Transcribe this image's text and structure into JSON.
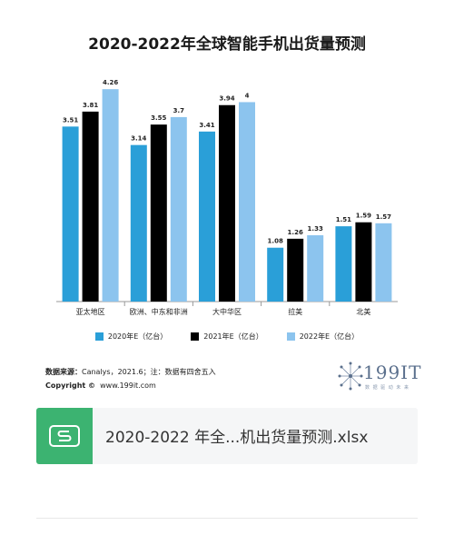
{
  "chart_data": {
    "type": "bar",
    "title": "2020-2022年全球智能手机出货量预测",
    "categories": [
      "亚太地区",
      "欧洲、中东和非洲",
      "大中华区",
      "拉美",
      "北美"
    ],
    "series": [
      {
        "name": "2020年E（亿台）",
        "values": [
          3.51,
          3.14,
          3.41,
          1.08,
          1.51
        ],
        "labels": [
          "3.51",
          "3.14",
          "3.41",
          "1.08",
          "1.51"
        ],
        "color": "#2a9fd8"
      },
      {
        "name": "2021年E（亿台）",
        "values": [
          3.81,
          3.55,
          3.94,
          1.26,
          1.59
        ],
        "labels": [
          "3.81",
          "3.55",
          "3.94",
          "1.26",
          "1.59"
        ],
        "color": "#000000"
      },
      {
        "name": "2022年E（亿台）",
        "values": [
          4.26,
          3.7,
          4,
          1.33,
          1.57
        ],
        "labels": [
          "4.26",
          "3.7",
          "4",
          "1.33",
          "1.57"
        ],
        "color": "#8cc4ee"
      }
    ],
    "ylim": [
      0,
      4.5
    ],
    "grid": false,
    "legend": "bottom"
  },
  "source": {
    "label": "数据来源：",
    "text": "Canalys，2021.6；注：数据有四舍五入"
  },
  "copyright": {
    "label": "Copyright ©",
    "text": "www.199it.com"
  },
  "logo": {
    "text": "199IT",
    "sub": "数 据 驱 动 未 来"
  },
  "file": {
    "icon": "spreadsheet-s-icon",
    "name": "2020-2022 年全...机出货量预测.xlsx",
    "accent": "#3cb371"
  }
}
